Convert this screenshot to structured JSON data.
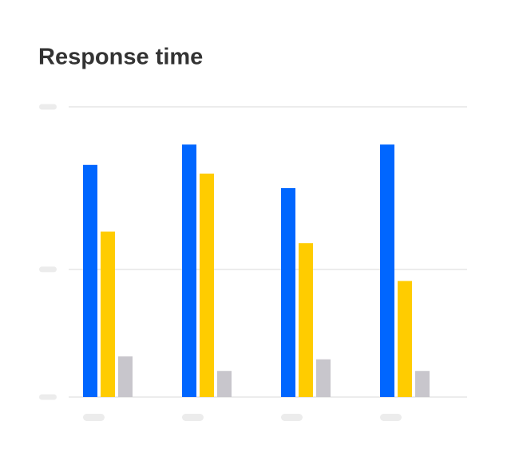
{
  "chart_data": {
    "type": "bar",
    "title": "Response time",
    "categories": [
      null,
      null,
      null,
      null
    ],
    "series": [
      {
        "color": "#0066ff",
        "values": [
          80,
          87,
          72,
          87
        ]
      },
      {
        "color": "#ffcc00",
        "values": [
          57,
          77,
          53,
          40
        ]
      },
      {
        "color": "#c8c6cc",
        "values": [
          14,
          9,
          13,
          9
        ]
      }
    ],
    "ylim": [
      0,
      100
    ],
    "yticks": [
      0,
      44,
      100
    ],
    "grid": true
  }
}
